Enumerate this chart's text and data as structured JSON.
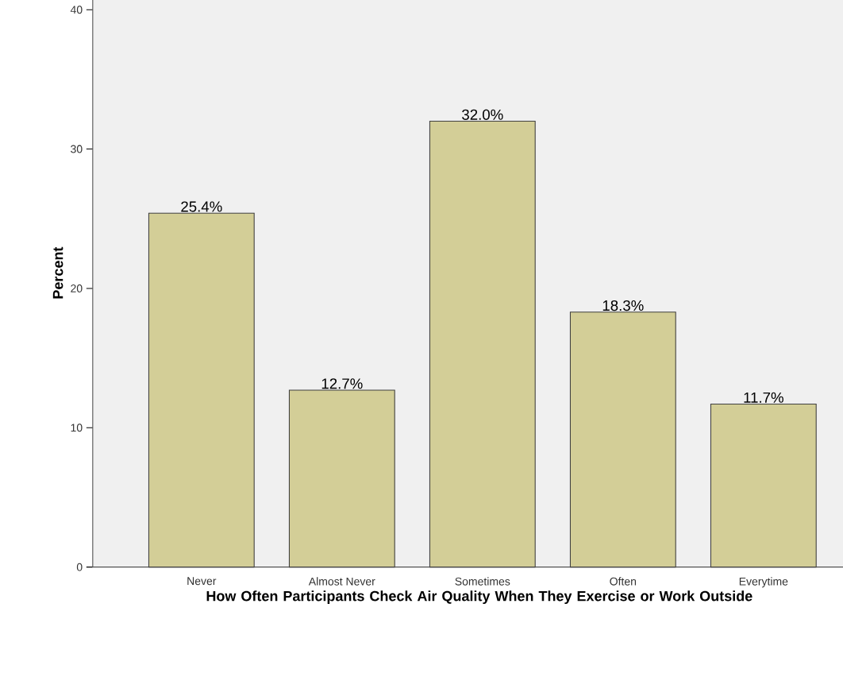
{
  "chart_data": {
    "type": "bar",
    "xlabel": "How Often Participants Check Air Quality When They Exercise or Work Outside",
    "ylabel": "Percent",
    "categories": [
      "Never",
      "Almost Never",
      "Sometimes",
      "Often",
      "Everytime"
    ],
    "values": [
      25.4,
      12.7,
      32.0,
      18.3,
      11.7
    ],
    "value_labels": [
      "25.4%",
      "12.7%",
      "32.0%",
      "18.3%",
      "11.7%"
    ],
    "color": "#d3ce97",
    "ylim": [
      0,
      42.2
    ],
    "yticks": [
      0,
      10,
      20,
      30,
      40
    ],
    "grid": false,
    "legend": false
  }
}
